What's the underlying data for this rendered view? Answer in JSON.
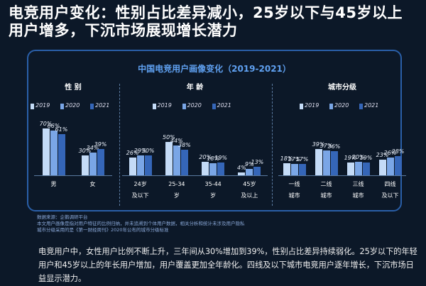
{
  "header": {
    "title": "电竞用户变化：性别占比差异减小，25岁以下与45岁以上用户增多，下沉市场展现增长潜力"
  },
  "panel_title": "中国电竞用户画像变化（2019-2021）",
  "chart_data": [
    {
      "type": "bar",
      "title": "性 别",
      "categories": [
        "男",
        "女"
      ],
      "series": [
        {
          "name": "2019",
          "color": "#c4dbf7",
          "values": [
            70,
            30
          ],
          "value_labels": [
            "70%",
            "30%"
          ]
        },
        {
          "name": "2020",
          "color": "#7aa6e6",
          "values": [
            66,
            34
          ],
          "value_labels": [
            "66%",
            "34%"
          ]
        },
        {
          "name": "2021",
          "color": "#3566b8",
          "values": [
            61,
            39
          ],
          "value_labels": [
            "61%",
            "39%"
          ]
        }
      ]
    },
    {
      "type": "bar",
      "title": "年 龄",
      "categories": [
        "24岁\n及以下",
        "25-34\n岁",
        "35-44\n岁",
        "45岁\n及以上"
      ],
      "series": [
        {
          "name": "2019",
          "color": "#c4dbf7",
          "values": [
            26,
            50,
            20,
            4
          ],
          "value_labels": [
            "26%",
            "50%",
            "20%",
            "4%"
          ]
        },
        {
          "name": "2020",
          "color": "#7aa6e6",
          "values": [
            29,
            44,
            18,
            9
          ],
          "value_labels": [
            "29%",
            "44%",
            "18%",
            "9%"
          ]
        },
        {
          "name": "2021",
          "color": "#3566b8",
          "values": [
            30,
            38,
            19,
            13
          ],
          "value_labels": [
            "30%",
            "38%",
            "19%",
            "13%"
          ]
        }
      ]
    },
    {
      "type": "bar",
      "title": "城市分级",
      "categories": [
        "一线\n城市",
        "二线\n城市",
        "三线\n城市",
        "四线\n及以下"
      ],
      "series": [
        {
          "name": "2019",
          "color": "#c4dbf7",
          "values": [
            18,
            39,
            19,
            23
          ],
          "value_labels": [
            "18%",
            "39%",
            "19%",
            "23%"
          ]
        },
        {
          "name": "2020",
          "color": "#7aa6e6",
          "values": [
            17,
            37,
            20,
            26
          ],
          "value_labels": [
            "17%",
            "37%",
            "20%",
            "26%"
          ]
        },
        {
          "name": "2021",
          "color": "#3566b8",
          "values": [
            17,
            36,
            19,
            28
          ],
          "value_labels": [
            "17%",
            "36%",
            "19%",
            "28%"
          ]
        }
      ]
    }
  ],
  "notes": [
    "数据来源：企鹅调研平台",
    "本文用户画像是指对用户特征的比例归纳，并未追溯到个体用户数据，相关分析和统计未涉及用户隐私",
    "城市分级采用的是《第一财经周刊》2020年公布的城市分级标准"
  ],
  "summary": "电竞用户中，女性用户比例不断上升，三年间从30%增加到39%，性别占比差异持续弱化。25岁以下的年轻用户和45岁以上的年长用户增加，用户覆盖更加全年龄化。四线及以下城市电竞用户逐年增长，下沉市场日益显示潜力。"
}
